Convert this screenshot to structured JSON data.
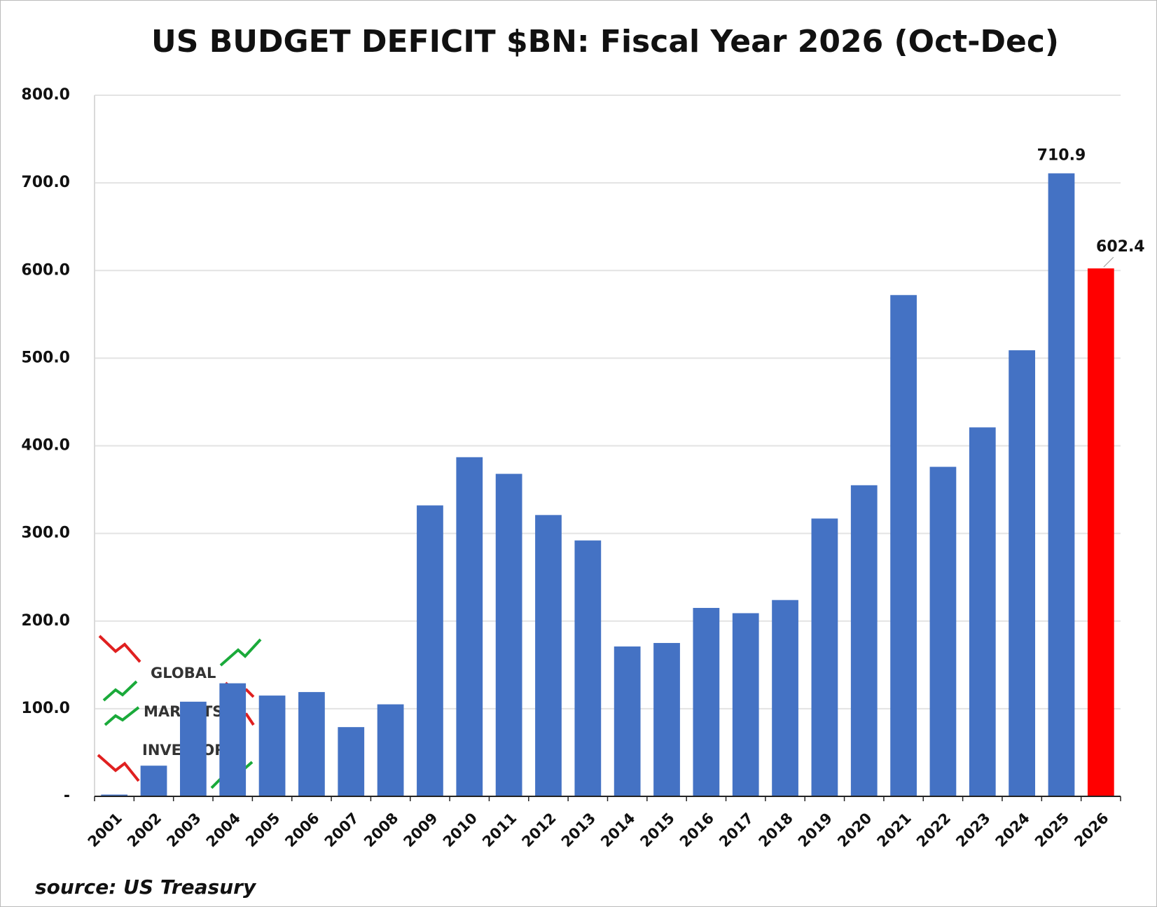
{
  "chart_data": {
    "type": "bar",
    "title": "US BUDGET DEFICIT $BN: Fiscal Year 2026 (Oct-Dec)",
    "categories": [
      "2001",
      "2002",
      "2003",
      "2004",
      "2005",
      "2006",
      "2007",
      "2008",
      "2009",
      "2010",
      "2011",
      "2012",
      "2013",
      "2014",
      "2015",
      "2016",
      "2017",
      "2018",
      "2019",
      "2020",
      "2021",
      "2022",
      "2023",
      "2024",
      "2025",
      "2026"
    ],
    "values": [
      2,
      35,
      108,
      129,
      115,
      119,
      79,
      105,
      332,
      387,
      368,
      321,
      292,
      171,
      175,
      215,
      209,
      224,
      317,
      355,
      572,
      376,
      421,
      509,
      710.9,
      602.4
    ],
    "color": "#4472c4",
    "highlight": {
      "category": "2026",
      "color": "#ff0000"
    },
    "data_labels_for": [
      "2025",
      "2026"
    ],
    "ylim": [
      0,
      800
    ],
    "yticks": [
      {
        "value": 0,
        "label": "-"
      },
      {
        "value": 100,
        "label": "100.0"
      },
      {
        "value": 200,
        "label": "200.0"
      },
      {
        "value": 300,
        "label": "300.0"
      },
      {
        "value": 400,
        "label": "400.0"
      },
      {
        "value": 500,
        "label": "500.0"
      },
      {
        "value": 600,
        "label": "600.0"
      },
      {
        "value": 700,
        "label": "700.0"
      },
      {
        "value": 800,
        "label": "800.0"
      }
    ],
    "grid": true,
    "source": "source: US Treasury",
    "watermark": [
      "GLOBAL",
      "MARKETS",
      "INVESTOR"
    ]
  }
}
